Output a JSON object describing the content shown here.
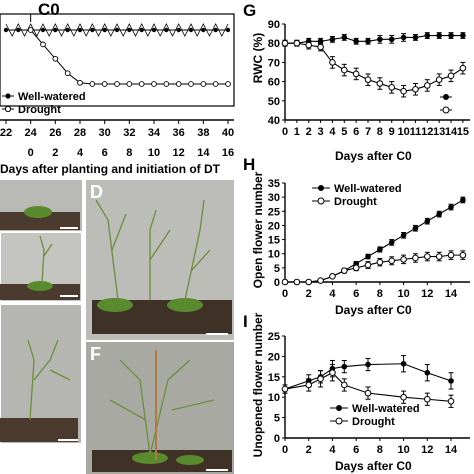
{
  "panels": {
    "F": {
      "label": "F",
      "c0_label": "C0",
      "xlabel": "Days after planting and initiation of DT",
      "dap_ticks": [
        "22",
        "24",
        "26",
        "28",
        "30",
        "32",
        "34",
        "36",
        "38",
        "40"
      ],
      "dt_ticks": [
        "0",
        "2",
        "4",
        "6",
        "8",
        "10",
        "12",
        "14",
        "16"
      ]
    },
    "G": {
      "label": "G",
      "ylabel": "RWC (%)",
      "xlabel": "Days after C0"
    },
    "H": {
      "label": "H",
      "ylabel": "Open flower number",
      "xlabel": "Days after C0"
    },
    "I": {
      "label": "I",
      "ylabel": "Unopened flower number",
      "xlabel": "Days after C0"
    },
    "photos": {
      "D": "D",
      "F2": "F"
    }
  },
  "legend": {
    "well": "Well-watered",
    "drought": "Drought"
  },
  "colors": {
    "filled": "#000000",
    "open": "#ffffff",
    "soil": "#4a3b2e",
    "leaf": "#5a8a2e",
    "bg": "#b8b8b4"
  },
  "chart_data": [
    {
      "id": "F",
      "type": "line",
      "xlabel": "Days after planting and initiation of DT",
      "x_ticks_top": [
        22,
        24,
        26,
        28,
        30,
        32,
        34,
        36,
        38,
        40
      ],
      "x_ticks_bottom": [
        0,
        2,
        4,
        6,
        8,
        10,
        12,
        14,
        16
      ],
      "series": [
        {
          "name": "Well-watered",
          "x": [
            22,
            23,
            24,
            25,
            26,
            27,
            28,
            29,
            30,
            31,
            32,
            33,
            34,
            35,
            36,
            37,
            38,
            39,
            40
          ],
          "y": [
            100,
            100,
            100,
            100,
            100,
            100,
            100,
            100,
            100,
            100,
            100,
            100,
            100,
            100,
            100,
            100,
            100,
            100,
            100
          ]
        },
        {
          "name": "Drought",
          "x": [
            24,
            25,
            26,
            27,
            28,
            29,
            30,
            31,
            32,
            33,
            34,
            35,
            36,
            37,
            38,
            39,
            40
          ],
          "y": [
            100,
            88,
            76,
            64,
            56,
            55,
            55,
            55,
            55,
            55,
            55,
            55,
            55,
            55,
            55,
            55,
            55
          ]
        }
      ],
      "annotations": [
        "C0"
      ]
    },
    {
      "id": "G",
      "type": "line",
      "xlabel": "Days after C0",
      "ylabel": "RWC (%)",
      "ylim": [
        40,
        90
      ],
      "yticks": [
        40,
        50,
        60,
        70,
        80,
        90
      ],
      "x": [
        0,
        1,
        2,
        3,
        4,
        5,
        6,
        7,
        8,
        9,
        10,
        11,
        12,
        13,
        14,
        15,
        16
      ],
      "series": [
        {
          "name": "Well-watered",
          "y": [
            80,
            80,
            81,
            81,
            82,
            83,
            81,
            81,
            82,
            82,
            83,
            83,
            84,
            84,
            84,
            84,
            84
          ],
          "err": [
            1.5,
            1.5,
            1.5,
            1.5,
            1.5,
            1.5,
            1.5,
            1.5,
            2,
            2,
            2,
            1.5,
            1.5,
            1.5,
            1.5,
            1.5,
            1.5
          ]
        },
        {
          "name": "Drought",
          "y": [
            80,
            80,
            79,
            78,
            70,
            66,
            64,
            61,
            59,
            57,
            55,
            56,
            58,
            61,
            63,
            67,
            71
          ],
          "err": [
            1.5,
            1.5,
            2,
            2,
            3,
            3,
            3,
            3,
            3,
            3,
            3,
            3,
            3,
            3,
            3,
            3,
            3
          ]
        }
      ]
    },
    {
      "id": "H",
      "type": "line",
      "xlabel": "Days after C0",
      "ylabel": "Open flower number",
      "ylim": [
        0,
        35
      ],
      "yticks": [
        0,
        5,
        10,
        15,
        20,
        25,
        30,
        35
      ],
      "xticks": [
        0,
        2,
        4,
        6,
        8,
        10,
        12,
        14
      ],
      "x": [
        0,
        1,
        2,
        3,
        4,
        5,
        6,
        7,
        8,
        9,
        10,
        11,
        12,
        13,
        14,
        15,
        16
      ],
      "series": [
        {
          "name": "Well-watered",
          "y": [
            0,
            0,
            0,
            0.5,
            2,
            4,
            6.5,
            9,
            11.5,
            14,
            16.5,
            19,
            21.5,
            24,
            26.5,
            29,
            31.5
          ],
          "err": [
            0,
            0,
            0,
            0.3,
            0.5,
            0.6,
            0.7,
            0.8,
            0.9,
            1,
            1,
            1,
            1,
            1,
            1,
            1,
            1
          ]
        },
        {
          "name": "Drought",
          "y": [
            0,
            0,
            0,
            0.5,
            2,
            4,
            5,
            6,
            7,
            7.5,
            8,
            8.5,
            9,
            9,
            9.5,
            9.5,
            10
          ],
          "err": [
            0,
            0,
            0,
            0.3,
            0.5,
            0.8,
            1,
            1.2,
            1.3,
            1.4,
            1.5,
            1.5,
            1.5,
            1.5,
            1.5,
            1.5,
            1.5
          ]
        }
      ]
    },
    {
      "id": "I",
      "type": "line",
      "xlabel": "Days after C0",
      "ylabel": "Unopened flower number",
      "ylim": [
        0,
        25
      ],
      "yticks": [
        0,
        5,
        10,
        15,
        20,
        25
      ],
      "xticks": [
        0,
        2,
        4,
        6,
        8,
        10,
        12,
        14
      ],
      "x": [
        0,
        2,
        3,
        4,
        5,
        7,
        10,
        12,
        14,
        16
      ],
      "series": [
        {
          "name": "Well-watered",
          "x": [
            0,
            2,
            3,
            4,
            5,
            7,
            10,
            12,
            14,
            16
          ],
          "y": [
            12,
            14,
            15,
            17,
            17.5,
            18,
            18.2,
            16,
            14,
            13
          ],
          "err": [
            1,
            1.5,
            1.5,
            2,
            1.5,
            1.5,
            2,
            2,
            2,
            2
          ]
        },
        {
          "name": "Drought",
          "x": [
            0,
            2,
            3,
            4,
            5,
            7,
            10,
            12,
            14,
            16
          ],
          "y": [
            12,
            13,
            14.5,
            16,
            13,
            11,
            10,
            9.5,
            9,
            8.5
          ],
          "err": [
            1,
            1.5,
            2,
            2,
            1.5,
            1.5,
            1.5,
            1.5,
            1.5,
            1.5
          ]
        }
      ]
    }
  ]
}
